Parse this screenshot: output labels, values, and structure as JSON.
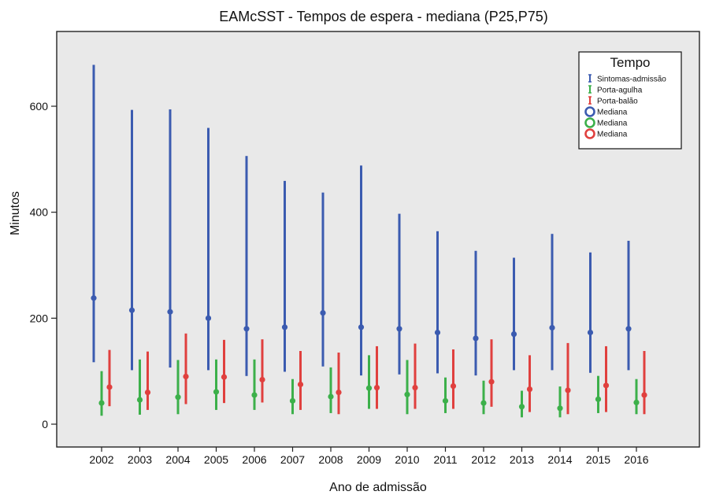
{
  "chart_data": {
    "type": "errorbar",
    "title": "EAMcSST - Tempos de espera - mediana (P25,P75)",
    "xlabel": "Ano de admissão",
    "ylabel": "Minutos",
    "ylim": [
      -40,
      740
    ],
    "yticks": [
      0,
      200,
      400,
      600
    ],
    "grid": false,
    "legend_position": "top-right",
    "categories": [
      "2002",
      "2003",
      "2004",
      "2005",
      "2006",
      "2007",
      "2008",
      "2009",
      "2010",
      "2011",
      "2012",
      "2013",
      "2014",
      "2015",
      "2016"
    ],
    "legend": {
      "title": "Tempo",
      "entries": [
        {
          "label": "Sintomas-admissão",
          "kind": "bar",
          "color": "#3b5bb0"
        },
        {
          "label": "Porta-agulha",
          "kind": "bar",
          "color": "#3cb04a"
        },
        {
          "label": "Porta-balão",
          "kind": "bar",
          "color": "#e0403e"
        },
        {
          "label": "Mediana",
          "kind": "circle",
          "color": "#3b5bb0"
        },
        {
          "label": "Mediana",
          "kind": "circle",
          "color": "#3cb04a"
        },
        {
          "label": "Mediana",
          "kind": "circle",
          "color": "#e0403e"
        }
      ]
    },
    "series": [
      {
        "name": "Sintomas-admissão",
        "color": "#3b5bb0",
        "median": [
          238,
          215,
          212,
          200,
          180,
          183,
          210,
          183,
          180,
          173,
          162,
          170,
          182,
          173,
          180
        ],
        "p25": [
          118,
          103,
          108,
          103,
          92,
          100,
          110,
          93,
          95,
          97,
          93,
          103,
          103,
          98,
          103
        ],
        "p75": [
          677,
          592,
          593,
          558,
          505,
          458,
          436,
          487,
          396,
          363,
          326,
          313,
          358,
          323,
          345
        ]
      },
      {
        "name": "Porta-agulha",
        "color": "#3cb04a",
        "median": [
          40,
          46,
          51,
          61,
          55,
          44,
          52,
          68,
          56,
          44,
          40,
          33,
          30,
          47,
          41
        ],
        "p25": [
          17,
          19,
          20,
          28,
          28,
          20,
          22,
          30,
          20,
          22,
          20,
          14,
          14,
          22,
          20
        ],
        "p75": [
          99,
          121,
          120,
          121,
          121,
          84,
          106,
          129,
          120,
          87,
          81,
          62,
          70,
          90,
          84
        ]
      },
      {
        "name": "Porta-balão",
        "color": "#e0403e",
        "median": [
          70,
          60,
          90,
          89,
          84,
          75,
          60,
          69,
          69,
          72,
          80,
          66,
          64,
          73,
          55
        ],
        "p25": [
          35,
          28,
          39,
          41,
          42,
          28,
          20,
          30,
          30,
          30,
          34,
          24,
          20,
          24,
          20
        ],
        "p75": [
          139,
          136,
          170,
          158,
          159,
          137,
          134,
          146,
          151,
          140,
          159,
          129,
          152,
          146,
          137
        ]
      }
    ]
  }
}
